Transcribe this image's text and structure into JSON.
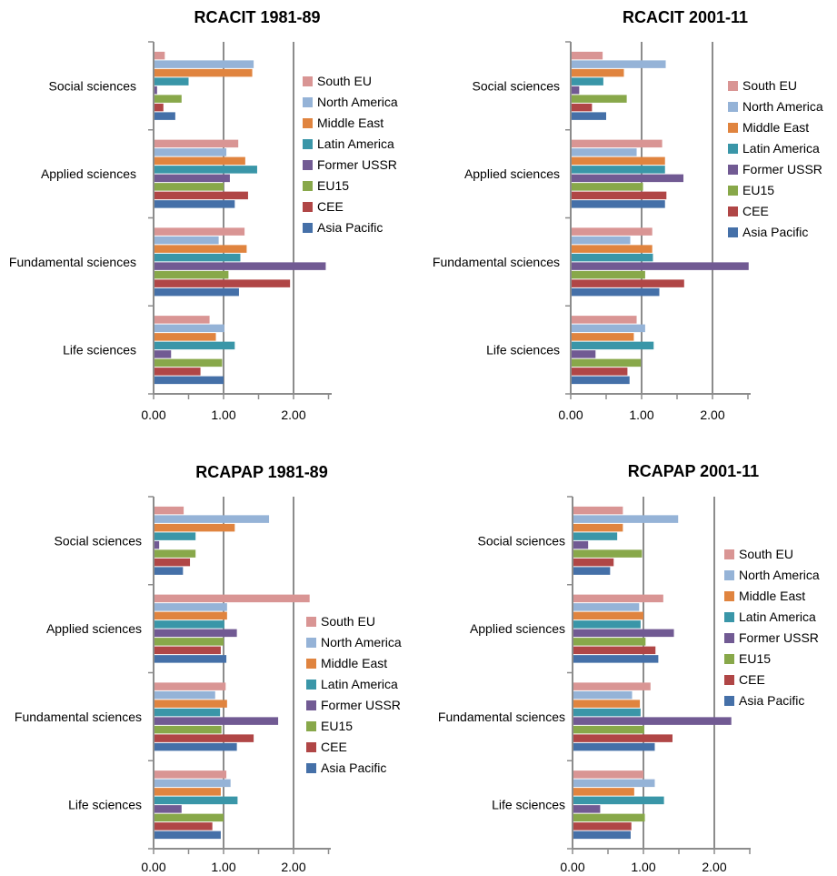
{
  "chart_data": [
    {
      "type": "bar",
      "orientation": "horizontal",
      "title": "RCACIT 1981-89",
      "categories": [
        "Social sciences",
        "Applied sciences",
        "Fundamental sciences",
        "Life sciences"
      ],
      "xlim": [
        0,
        2.5
      ],
      "xticks": [
        "0.00",
        "1.00",
        "2.00"
      ],
      "legend_position": "right",
      "series": [
        {
          "name": "South EU",
          "color": "#d99594",
          "values": [
            0.16,
            1.21,
            1.3,
            0.8
          ]
        },
        {
          "name": "North America",
          "color": "#95b3d7",
          "values": [
            1.43,
            1.04,
            0.93,
            1.01
          ]
        },
        {
          "name": "Middle East",
          "color": "#e0843f",
          "values": [
            1.41,
            1.31,
            1.33,
            0.89
          ]
        },
        {
          "name": "Latin America",
          "color": "#3a96a8",
          "values": [
            0.5,
            1.48,
            1.24,
            1.16
          ]
        },
        {
          "name": "Former USSR",
          "color": "#715a93",
          "values": [
            0.05,
            1.09,
            2.46,
            0.25
          ]
        },
        {
          "name": "EU15",
          "color": "#88a84a",
          "values": [
            0.4,
            1.0,
            1.07,
            0.98
          ]
        },
        {
          "name": "CEE",
          "color": "#b04646",
          "values": [
            0.14,
            1.35,
            1.95,
            0.67
          ]
        },
        {
          "name": "Asia Pacific",
          "color": "#4570a8",
          "values": [
            0.31,
            1.16,
            1.22,
            1.0
          ]
        }
      ]
    },
    {
      "type": "bar",
      "orientation": "horizontal",
      "title": "RCACIT 2001-11",
      "categories": [
        "Social sciences",
        "Applied sciences",
        "Fundamental sciences",
        "Life sciences"
      ],
      "xlim": [
        0,
        2.5
      ],
      "xticks": [
        "0.00",
        "1.00",
        "2.00"
      ],
      "legend_position": "right",
      "series": [
        {
          "name": "South EU",
          "color": "#d99594",
          "values": [
            0.45,
            1.29,
            1.15,
            0.93
          ]
        },
        {
          "name": "North America",
          "color": "#95b3d7",
          "values": [
            1.34,
            0.93,
            0.84,
            1.05
          ]
        },
        {
          "name": "Middle East",
          "color": "#e0843f",
          "values": [
            0.75,
            1.33,
            1.15,
            0.89
          ]
        },
        {
          "name": "Latin America",
          "color": "#3a96a8",
          "values": [
            0.46,
            1.33,
            1.16,
            1.17
          ]
        },
        {
          "name": "Former USSR",
          "color": "#715a93",
          "values": [
            0.12,
            1.59,
            2.51,
            0.35
          ]
        },
        {
          "name": "EU15",
          "color": "#88a84a",
          "values": [
            0.79,
            1.02,
            1.05,
            0.99
          ]
        },
        {
          "name": "CEE",
          "color": "#b04646",
          "values": [
            0.3,
            1.35,
            1.6,
            0.8
          ]
        },
        {
          "name": "Asia Pacific",
          "color": "#4570a8",
          "values": [
            0.5,
            1.33,
            1.25,
            0.83
          ]
        }
      ]
    },
    {
      "type": "bar",
      "orientation": "horizontal",
      "title": "RCAPAP 1981-89",
      "categories": [
        "Social sciences",
        "Applied sciences",
        "Fundamental sciences",
        "Life sciences"
      ],
      "xlim": [
        0,
        2.5
      ],
      "xticks": [
        "0.00",
        "1.00",
        "2.00"
      ],
      "legend_position": "right",
      "series": [
        {
          "name": "South EU",
          "color": "#d99594",
          "values": [
            0.43,
            2.23,
            1.03,
            1.04
          ]
        },
        {
          "name": "North America",
          "color": "#95b3d7",
          "values": [
            1.65,
            1.05,
            0.88,
            1.1
          ]
        },
        {
          "name": "Middle East",
          "color": "#e0843f",
          "values": [
            1.16,
            1.05,
            1.05,
            0.96
          ]
        },
        {
          "name": "Latin America",
          "color": "#3a96a8",
          "values": [
            0.6,
            1.01,
            0.95,
            1.2
          ]
        },
        {
          "name": "Former USSR",
          "color": "#715a93",
          "values": [
            0.08,
            1.19,
            1.78,
            0.4
          ]
        },
        {
          "name": "EU15",
          "color": "#88a84a",
          "values": [
            0.6,
            1.0,
            0.97,
            1.0
          ]
        },
        {
          "name": "CEE",
          "color": "#b04646",
          "values": [
            0.52,
            0.96,
            1.43,
            0.84
          ]
        },
        {
          "name": "Asia Pacific",
          "color": "#4570a8",
          "values": [
            0.42,
            1.04,
            1.19,
            0.96
          ]
        }
      ]
    },
    {
      "type": "bar",
      "orientation": "horizontal",
      "title": "RCAPAP 2001-11",
      "categories": [
        "Social sciences",
        "Applied sciences",
        "Fundamental sciences",
        "Life sciences"
      ],
      "xlim": [
        0,
        2.5
      ],
      "xticks": [
        "0.00",
        "1.00",
        "2.00"
      ],
      "legend_position": "right",
      "series": [
        {
          "name": "South EU",
          "color": "#d99594",
          "values": [
            0.71,
            1.28,
            1.1,
            1.0
          ]
        },
        {
          "name": "North America",
          "color": "#95b3d7",
          "values": [
            1.49,
            0.94,
            0.84,
            1.16
          ]
        },
        {
          "name": "Middle East",
          "color": "#e0843f",
          "values": [
            0.71,
            1.0,
            0.95,
            0.87
          ]
        },
        {
          "name": "Latin America",
          "color": "#3a96a8",
          "values": [
            0.63,
            0.96,
            0.96,
            1.29
          ]
        },
        {
          "name": "Former USSR",
          "color": "#715a93",
          "values": [
            0.22,
            1.43,
            2.24,
            0.39
          ]
        },
        {
          "name": "EU15",
          "color": "#88a84a",
          "values": [
            0.98,
            1.03,
            1.01,
            1.02
          ]
        },
        {
          "name": "CEE",
          "color": "#b04646",
          "values": [
            0.58,
            1.17,
            1.41,
            0.83
          ]
        },
        {
          "name": "Asia Pacific",
          "color": "#4570a8",
          "values": [
            0.53,
            1.21,
            1.16,
            0.82
          ]
        }
      ]
    }
  ]
}
